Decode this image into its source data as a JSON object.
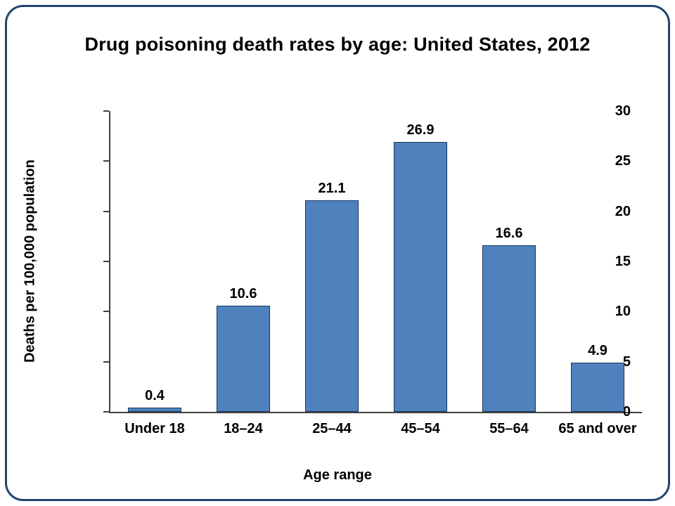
{
  "frame": {
    "border_color": "#1F4470",
    "background": "#ffffff"
  },
  "chart_data": {
    "type": "bar",
    "title": "Drug poisoning death rates by age: United States, 2012",
    "categories": [
      "Under 18",
      "18–24",
      "25–44",
      "45–54",
      "55–64",
      "65 and over"
    ],
    "values": [
      0.4,
      10.6,
      21.1,
      26.9,
      16.6,
      4.9
    ],
    "value_labels": [
      "0.4",
      "10.6",
      "21.1",
      "26.9",
      "16.6",
      "4.9"
    ],
    "xlabel": "Age range",
    "ylabel": "Deaths per 100,000 population",
    "ylim": [
      0,
      30
    ],
    "yticks": [
      0,
      5,
      10,
      15,
      20,
      25,
      30
    ],
    "grid": false,
    "legend": "none",
    "bar_color": "#4F81BD",
    "bar_border_color": "#17375E"
  }
}
